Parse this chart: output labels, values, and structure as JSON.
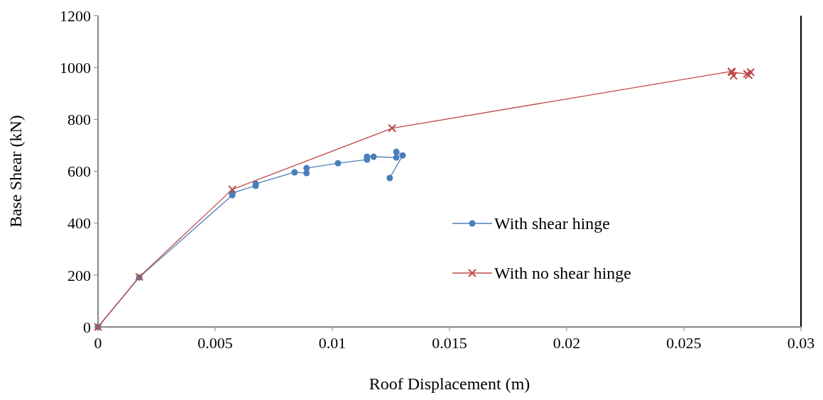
{
  "chart_data": {
    "type": "line",
    "xlabel": "Roof Displacement (m)",
    "ylabel": "Base Shear  (kN)",
    "xlim": [
      0,
      0.03
    ],
    "ylim": [
      0,
      1200
    ],
    "xticks": [
      0,
      0.005,
      0.01,
      0.015,
      0.02,
      0.025,
      0.03
    ],
    "yticks": [
      0,
      200,
      400,
      600,
      800,
      1000,
      1200
    ],
    "grid": false,
    "legend": "right",
    "series": [
      {
        "name": "With shear hinge",
        "color": "#4a7ebb",
        "marker": "circle",
        "x": [
          0,
          0.00176,
          0.00573,
          0.00573,
          0.00673,
          0.00673,
          0.00839,
          0.0089,
          0.0089,
          0.01024,
          0.01148,
          0.01148,
          0.01176,
          0.01273,
          0.01273,
          0.013,
          0.01245
        ],
        "values": [
          0,
          191,
          508,
          516,
          544,
          552,
          596,
          593,
          612,
          631,
          645,
          656,
          656,
          653,
          675,
          661,
          574
        ]
      },
      {
        "name": "With no shear hinge",
        "color": "#be4b48",
        "marker": "cross",
        "x": [
          0,
          0.00176,
          0.00573,
          0.01255,
          0.02703,
          0.02712,
          0.02705,
          0.0277,
          0.02785,
          0.02777
        ],
        "values": [
          0,
          193,
          530,
          766,
          985,
          968,
          982,
          975,
          982,
          970
        ]
      }
    ]
  }
}
